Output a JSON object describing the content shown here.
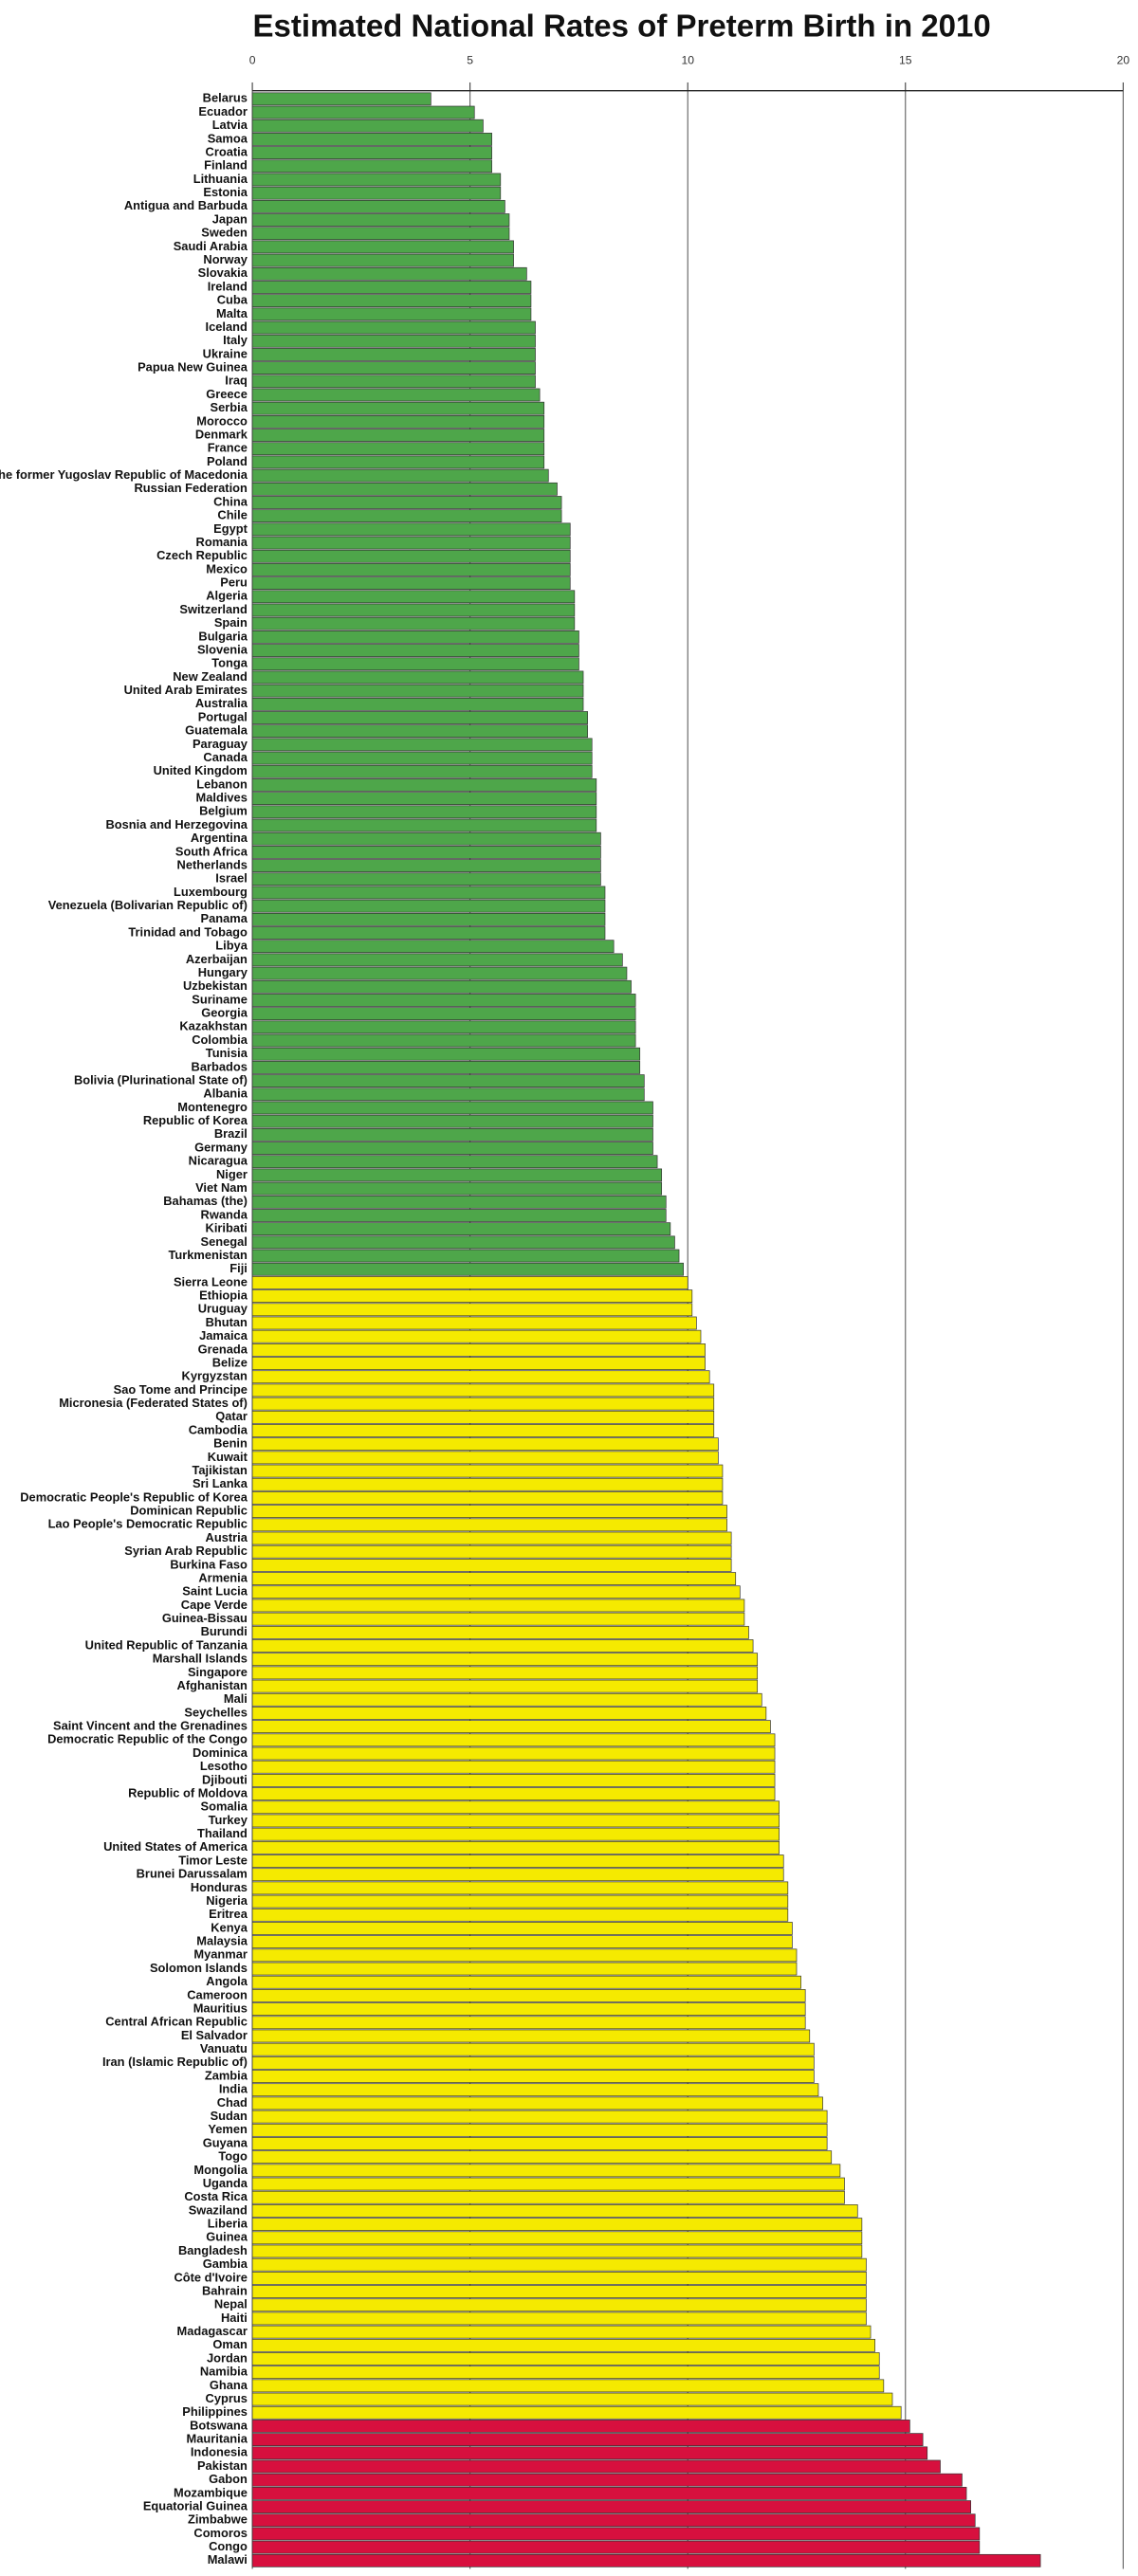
{
  "chart_data": {
    "type": "bar",
    "orientation": "horizontal",
    "title": "Estimated National Rates of Preterm Birth in 2010",
    "xlim": [
      0,
      20
    ],
    "xticks": [
      0,
      5,
      10,
      15,
      20
    ],
    "grid": true,
    "series": [
      {
        "color": "#4ea64a",
        "categories": [
          "Belarus",
          "Ecuador",
          "Latvia",
          "Samoa",
          "Croatia",
          "Finland",
          "Lithuania",
          "Estonia",
          "Antigua and Barbuda",
          "Japan",
          "Sweden",
          "Saudi Arabia",
          "Norway",
          "Slovakia",
          "Ireland",
          "Cuba",
          "Malta",
          "Iceland",
          "Italy",
          "Ukraine",
          "Papua New Guinea",
          "Iraq",
          "Greece",
          "Serbia",
          "Morocco",
          "Denmark",
          "France",
          "Poland",
          "The former Yugoslav Republic of Macedonia",
          "Russian Federation",
          "China",
          "Chile",
          "Egypt",
          "Romania",
          "Czech Republic",
          "Mexico",
          "Peru",
          "Algeria",
          "Switzerland",
          "Spain",
          "Bulgaria",
          "Slovenia",
          "Tonga",
          "New Zealand",
          "United Arab Emirates",
          "Australia",
          "Portugal",
          "Guatemala",
          "Paraguay",
          "Canada",
          "United Kingdom",
          "Lebanon",
          "Maldives",
          "Belgium",
          "Bosnia and Herzegovina",
          "Argentina",
          "South Africa",
          "Netherlands",
          "Israel",
          "Luxembourg",
          "Venezuela (Bolivarian Republic of)",
          "Panama",
          "Trinidad and Tobago",
          "Libya",
          "Azerbaijan",
          "Hungary",
          "Uzbekistan",
          "Suriname",
          "Georgia",
          "Kazakhstan",
          "Colombia",
          "Tunisia",
          "Barbados",
          "Bolivia (Plurinational State of)",
          "Albania",
          "Montenegro",
          "Republic of Korea",
          "Brazil",
          "Germany",
          "Nicaragua",
          "Niger",
          "Viet Nam",
          "Bahamas (the)",
          "Rwanda",
          "Kiribati",
          "Senegal",
          "Turkmenistan",
          "Fiji"
        ],
        "values": [
          4.1,
          5.1,
          5.3,
          5.5,
          5.5,
          5.5,
          5.7,
          5.7,
          5.8,
          5.9,
          5.9,
          6.0,
          6.0,
          6.3,
          6.4,
          6.4,
          6.4,
          6.5,
          6.5,
          6.5,
          6.5,
          6.5,
          6.6,
          6.7,
          6.7,
          6.7,
          6.7,
          6.7,
          6.8,
          7.0,
          7.1,
          7.1,
          7.3,
          7.3,
          7.3,
          7.3,
          7.3,
          7.4,
          7.4,
          7.4,
          7.5,
          7.5,
          7.5,
          7.6,
          7.6,
          7.6,
          7.7,
          7.7,
          7.8,
          7.8,
          7.8,
          7.9,
          7.9,
          7.9,
          7.9,
          8.0,
          8.0,
          8.0,
          8.0,
          8.1,
          8.1,
          8.1,
          8.1,
          8.3,
          8.5,
          8.6,
          8.7,
          8.8,
          8.8,
          8.8,
          8.8,
          8.9,
          8.9,
          9.0,
          9.0,
          9.2,
          9.2,
          9.2,
          9.2,
          9.3,
          9.4,
          9.4,
          9.5,
          9.5,
          9.6,
          9.7,
          9.8,
          9.9
        ]
      },
      {
        "color": "#f5ea00",
        "categories": [
          "Sierra Leone",
          "Ethiopia",
          "Uruguay",
          "Bhutan",
          "Jamaica",
          "Grenada",
          "Belize",
          "Kyrgyzstan",
          "Sao Tome and Principe",
          "Micronesia (Federated States of)",
          "Qatar",
          "Cambodia",
          "Benin",
          "Kuwait",
          "Tajikistan",
          "Sri Lanka",
          "Democratic People's Republic of Korea",
          "Dominican Republic",
          "Lao People's Democratic Republic",
          "Austria",
          "Syrian Arab Republic",
          "Burkina Faso",
          "Armenia",
          "Saint Lucia",
          "Cape Verde",
          "Guinea-Bissau",
          "Burundi",
          "United Republic of Tanzania",
          "Marshall Islands",
          "Singapore",
          "Afghanistan",
          "Mali",
          "Seychelles",
          "Saint Vincent and the Grenadines",
          "Democratic Republic of the Congo",
          "Dominica",
          "Lesotho",
          "Djibouti",
          "Republic of Moldova",
          "Somalia",
          "Turkey",
          "Thailand",
          "United States of America",
          "Timor Leste",
          "Brunei Darussalam",
          "Honduras",
          "Nigeria",
          "Eritrea",
          "Kenya",
          "Malaysia",
          "Myanmar",
          "Solomon Islands",
          "Angola",
          "Cameroon",
          "Mauritius",
          "Central African Republic",
          "El Salvador",
          "Vanuatu",
          "Iran (Islamic Republic of)",
          "Zambia",
          "India",
          "Chad",
          "Sudan",
          "Yemen",
          "Guyana",
          "Togo",
          "Mongolia",
          "Uganda",
          "Costa Rica",
          "Swaziland",
          "Liberia",
          "Guinea",
          "Bangladesh",
          "Gambia",
          "Côte d'Ivoire",
          "Bahrain",
          "Nepal",
          "Haiti",
          "Madagascar",
          "Oman",
          "Jordan",
          "Namibia",
          "Ghana",
          "Cyprus",
          "Philippines"
        ],
        "values": [
          10.0,
          10.1,
          10.1,
          10.2,
          10.3,
          10.4,
          10.4,
          10.5,
          10.6,
          10.6,
          10.6,
          10.6,
          10.7,
          10.7,
          10.8,
          10.8,
          10.8,
          10.9,
          10.9,
          11.0,
          11.0,
          11.0,
          11.1,
          11.2,
          11.3,
          11.3,
          11.4,
          11.5,
          11.6,
          11.6,
          11.6,
          11.7,
          11.8,
          11.9,
          12.0,
          12.0,
          12.0,
          12.0,
          12.0,
          12.1,
          12.1,
          12.1,
          12.1,
          12.2,
          12.2,
          12.3,
          12.3,
          12.3,
          12.4,
          12.4,
          12.5,
          12.5,
          12.6,
          12.7,
          12.7,
          12.7,
          12.8,
          12.9,
          12.9,
          12.9,
          13.0,
          13.1,
          13.2,
          13.2,
          13.2,
          13.3,
          13.5,
          13.6,
          13.6,
          13.9,
          14.0,
          14.0,
          14.0,
          14.1,
          14.1,
          14.1,
          14.1,
          14.1,
          14.2,
          14.3,
          14.4,
          14.4,
          14.5,
          14.7,
          14.9
        ]
      },
      {
        "color": "#d7103e",
        "categories": [
          "Botswana",
          "Mauritania",
          "Indonesia",
          "Pakistan",
          "Gabon",
          "Mozambique",
          "Equatorial Guinea",
          "Zimbabwe",
          "Comoros",
          "Congo",
          "Malawi"
        ],
        "values": [
          15.1,
          15.4,
          15.5,
          15.8,
          16.3,
          16.4,
          16.5,
          16.6,
          16.7,
          16.7,
          18.1
        ]
      }
    ]
  }
}
